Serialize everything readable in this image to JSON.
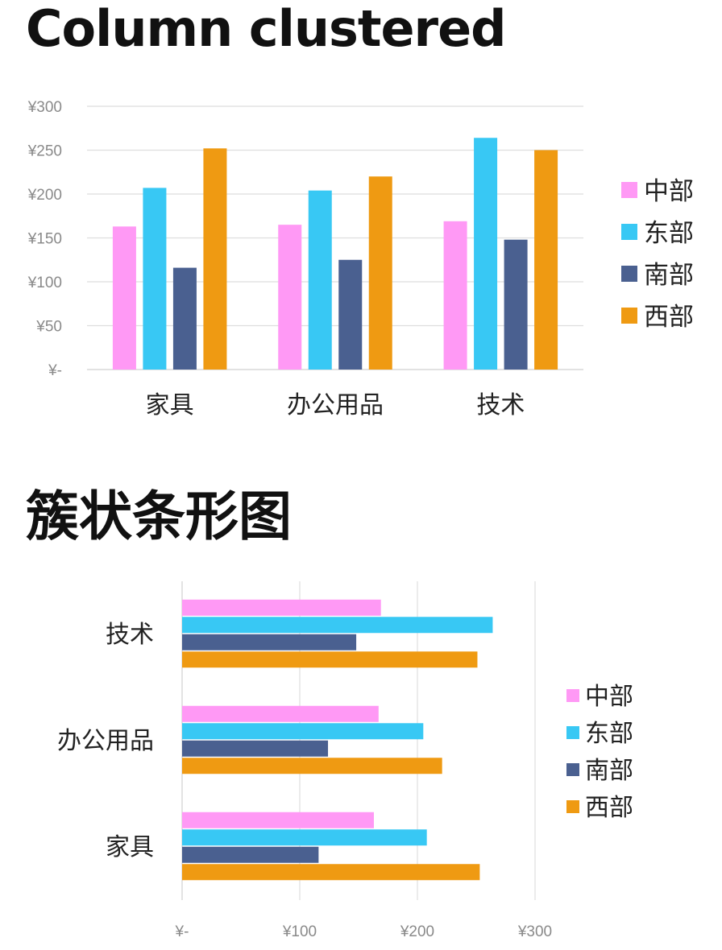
{
  "colors": {
    "中部": "#ff99f5",
    "东部": "#38c8f4",
    "南部": "#4a6090",
    "西部": "#ef9a12"
  },
  "chart_data": [
    {
      "type": "bar",
      "orientation": "vertical",
      "title": "Column clustered",
      "categories": [
        "家具",
        "办公用品",
        "技术"
      ],
      "series": [
        {
          "name": "中部",
          "values": [
            163,
            165,
            169
          ]
        },
        {
          "name": "东部",
          "values": [
            207,
            204,
            264
          ]
        },
        {
          "name": "南部",
          "values": [
            116,
            125,
            148
          ]
        },
        {
          "name": "西部",
          "values": [
            252,
            220,
            250
          ]
        }
      ],
      "yticks": [
        "¥-",
        "¥50",
        "¥100",
        "¥150",
        "¥200",
        "¥250",
        "¥300"
      ],
      "ylim": [
        0,
        300
      ],
      "grid": true,
      "legend": "right"
    },
    {
      "type": "bar",
      "orientation": "horizontal",
      "title": "簇状条形图",
      "categories": [
        "技术",
        "办公用品",
        "家具"
      ],
      "series": [
        {
          "name": "中部",
          "values": [
            169,
            167,
            163
          ]
        },
        {
          "name": "东部",
          "values": [
            264,
            205,
            208
          ]
        },
        {
          "name": "南部",
          "values": [
            148,
            124,
            116
          ]
        },
        {
          "name": "西部",
          "values": [
            251,
            221,
            253
          ]
        }
      ],
      "xticks": [
        "¥-",
        "¥100",
        "¥200",
        "¥300"
      ],
      "xlim": [
        0,
        300
      ],
      "grid": true,
      "legend": "right"
    }
  ]
}
